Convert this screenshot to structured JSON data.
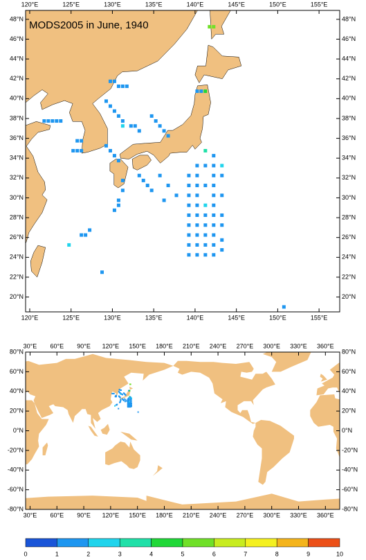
{
  "maps": [
    {
      "title": "MODS2005 in June, 1940",
      "xlim": [
        119.5,
        157.5
      ],
      "ylim": [
        18.5,
        48.9
      ],
      "xticks": [
        {
          "value": 120,
          "label": "120°E"
        },
        {
          "value": 125,
          "label": "125°E"
        },
        {
          "value": 130,
          "label": "130°E"
        },
        {
          "value": 135,
          "label": "135°E"
        },
        {
          "value": 140,
          "label": "140°E"
        },
        {
          "value": 145,
          "label": "145°E"
        },
        {
          "value": 150,
          "label": "150°E"
        },
        {
          "value": 155,
          "label": "155°E"
        }
      ],
      "yticks": [
        {
          "value": 20,
          "label": "20°N"
        },
        {
          "value": 22,
          "label": "22°N"
        },
        {
          "value": 24,
          "label": "24°N"
        },
        {
          "value": 26,
          "label": "26°N"
        },
        {
          "value": 28,
          "label": "28°N"
        },
        {
          "value": 30,
          "label": "30°N"
        },
        {
          "value": 32,
          "label": "32°N"
        },
        {
          "value": 34,
          "label": "34°N"
        },
        {
          "value": 36,
          "label": "36°N"
        },
        {
          "value": 38,
          "label": "38°N"
        },
        {
          "value": 40,
          "label": "40°N"
        },
        {
          "value": 42,
          "label": "42°N"
        },
        {
          "value": 44,
          "label": "44°N"
        },
        {
          "value": 46,
          "label": "46°N"
        },
        {
          "value": 48,
          "label": "48°N"
        }
      ],
      "points": [
        [
          141.75,
          47.25,
          5
        ],
        [
          142.25,
          47.25,
          5
        ],
        [
          140.25,
          40.75,
          1
        ],
        [
          140.75,
          40.75,
          1
        ],
        [
          141.25,
          40.75,
          4
        ],
        [
          129.75,
          41.75,
          1
        ],
        [
          130.25,
          41.75,
          1
        ],
        [
          130.75,
          41.25,
          1
        ],
        [
          131.25,
          41.25,
          1
        ],
        [
          131.75,
          41.25,
          1
        ],
        [
          129.25,
          39.75,
          1
        ],
        [
          129.75,
          39.25,
          1
        ],
        [
          130.25,
          38.75,
          1
        ],
        [
          130.75,
          38.25,
          1
        ],
        [
          131.25,
          37.75,
          1
        ],
        [
          131.25,
          37.25,
          2
        ],
        [
          121.75,
          37.75,
          1
        ],
        [
          122.25,
          37.75,
          1
        ],
        [
          122.75,
          37.75,
          1
        ],
        [
          123.25,
          37.75,
          1
        ],
        [
          123.75,
          37.75,
          1
        ],
        [
          125.75,
          35.75,
          1
        ],
        [
          126.25,
          35.75,
          1
        ],
        [
          125.25,
          34.75,
          1
        ],
        [
          125.75,
          34.75,
          1
        ],
        [
          126.25,
          34.75,
          1
        ],
        [
          129.25,
          35.25,
          1
        ],
        [
          129.75,
          34.75,
          1
        ],
        [
          130.25,
          34.25,
          1
        ],
        [
          130.75,
          33.75,
          1
        ],
        [
          134.75,
          38.25,
          1
        ],
        [
          135.25,
          37.75,
          1
        ],
        [
          135.75,
          37.25,
          1
        ],
        [
          136.25,
          36.75,
          1
        ],
        [
          136.75,
          36.25,
          1
        ],
        [
          132.25,
          37.25,
          1
        ],
        [
          132.75,
          37.25,
          1
        ],
        [
          133.25,
          36.75,
          1
        ],
        [
          131.25,
          31.75,
          1
        ],
        [
          131.25,
          30.75,
          1
        ],
        [
          130.75,
          29.75,
          1
        ],
        [
          130.75,
          29.25,
          1
        ],
        [
          130.25,
          28.75,
          1
        ],
        [
          133.25,
          32.25,
          1
        ],
        [
          133.75,
          31.75,
          1
        ],
        [
          134.25,
          31.25,
          1
        ],
        [
          134.75,
          30.75,
          1
        ],
        [
          135.75,
          32.25,
          1
        ],
        [
          136.75,
          31.25,
          1
        ],
        [
          137.75,
          30.25,
          1
        ],
        [
          136.25,
          29.75,
          1
        ],
        [
          139.25,
          24.25,
          1
        ],
        [
          139.25,
          25.25,
          1
        ],
        [
          139.25,
          26.25,
          1
        ],
        [
          139.25,
          27.25,
          1
        ],
        [
          139.25,
          28.25,
          1
        ],
        [
          139.25,
          29.25,
          1
        ],
        [
          139.25,
          30.25,
          1
        ],
        [
          139.25,
          31.25,
          1
        ],
        [
          139.25,
          32.25,
          1
        ],
        [
          140.25,
          24.25,
          1
        ],
        [
          140.25,
          25.25,
          1
        ],
        [
          140.25,
          26.25,
          1
        ],
        [
          140.25,
          27.25,
          1
        ],
        [
          140.25,
          28.25,
          1
        ],
        [
          140.25,
          29.25,
          1
        ],
        [
          140.25,
          30.25,
          1
        ],
        [
          140.25,
          31.25,
          1
        ],
        [
          140.25,
          32.25,
          1
        ],
        [
          140.25,
          33.25,
          1
        ],
        [
          141.25,
          24.25,
          1
        ],
        [
          141.25,
          25.25,
          1
        ],
        [
          141.25,
          26.25,
          1
        ],
        [
          141.25,
          27.25,
          1
        ],
        [
          141.25,
          28.25,
          1
        ],
        [
          141.25,
          29.25,
          2
        ],
        [
          141.25,
          31.25,
          1
        ],
        [
          141.25,
          33.25,
          1
        ],
        [
          141.25,
          34.75,
          3
        ],
        [
          142.25,
          24.25,
          1
        ],
        [
          142.25,
          25.25,
          1
        ],
        [
          142.25,
          26.25,
          1
        ],
        [
          142.25,
          27.25,
          1
        ],
        [
          142.25,
          28.25,
          1
        ],
        [
          142.25,
          29.25,
          1
        ],
        [
          142.25,
          30.25,
          1
        ],
        [
          142.25,
          31.25,
          1
        ],
        [
          142.25,
          32.25,
          1
        ],
        [
          142.25,
          33.25,
          1
        ],
        [
          142.25,
          34.25,
          1
        ],
        [
          143.25,
          24.75,
          1
        ],
        [
          143.25,
          25.75,
          1
        ],
        [
          143.25,
          27.25,
          1
        ],
        [
          143.25,
          28.25,
          1
        ],
        [
          143.25,
          30.25,
          1
        ],
        [
          143.25,
          32.25,
          1
        ],
        [
          143.25,
          33.25,
          2
        ],
        [
          126.25,
          26.25,
          1
        ],
        [
          126.75,
          26.25,
          1
        ],
        [
          127.25,
          26.75,
          1
        ],
        [
          124.75,
          25.25,
          2
        ],
        [
          128.75,
          22.5,
          1
        ],
        [
          150.75,
          19.0,
          1
        ]
      ]
    },
    {
      "xlim": [
        25,
        376
      ],
      "ylim": [
        -80,
        80
      ],
      "xticks": [
        {
          "value": 30,
          "label": "30°E"
        },
        {
          "value": 60,
          "label": "60°E"
        },
        {
          "value": 90,
          "label": "90°E"
        },
        {
          "value": 120,
          "label": "120°E"
        },
        {
          "value": 150,
          "label": "150°E"
        },
        {
          "value": 180,
          "label": "180°E"
        },
        {
          "value": 210,
          "label": "210°E"
        },
        {
          "value": 240,
          "label": "240°E"
        },
        {
          "value": 270,
          "label": "270°E"
        },
        {
          "value": 300,
          "label": "300°E"
        },
        {
          "value": 330,
          "label": "330°E"
        },
        {
          "value": 360,
          "label": "360°E"
        }
      ],
      "yticks": [
        {
          "value": -80,
          "label": "-80°N"
        },
        {
          "value": -60,
          "label": "-60°N"
        },
        {
          "value": -40,
          "label": "-40°N"
        },
        {
          "value": -20,
          "label": "-20°N"
        },
        {
          "value": 0,
          "label": "0°N"
        },
        {
          "value": 20,
          "label": "20°N"
        },
        {
          "value": 40,
          "label": "40°N"
        },
        {
          "value": 60,
          "label": "60°N"
        },
        {
          "value": 80,
          "label": "80°N"
        }
      ]
    }
  ],
  "colorbar": {
    "ticks": [
      0,
      1,
      2,
      3,
      4,
      5,
      6,
      7,
      8,
      9,
      10
    ],
    "colors": [
      "#1a55d8",
      "#1e96f0",
      "#20d4ec",
      "#20e0a8",
      "#20d838",
      "#70e028",
      "#c8ec20",
      "#f4f020",
      "#f4b41c",
      "#ec5018"
    ]
  }
}
